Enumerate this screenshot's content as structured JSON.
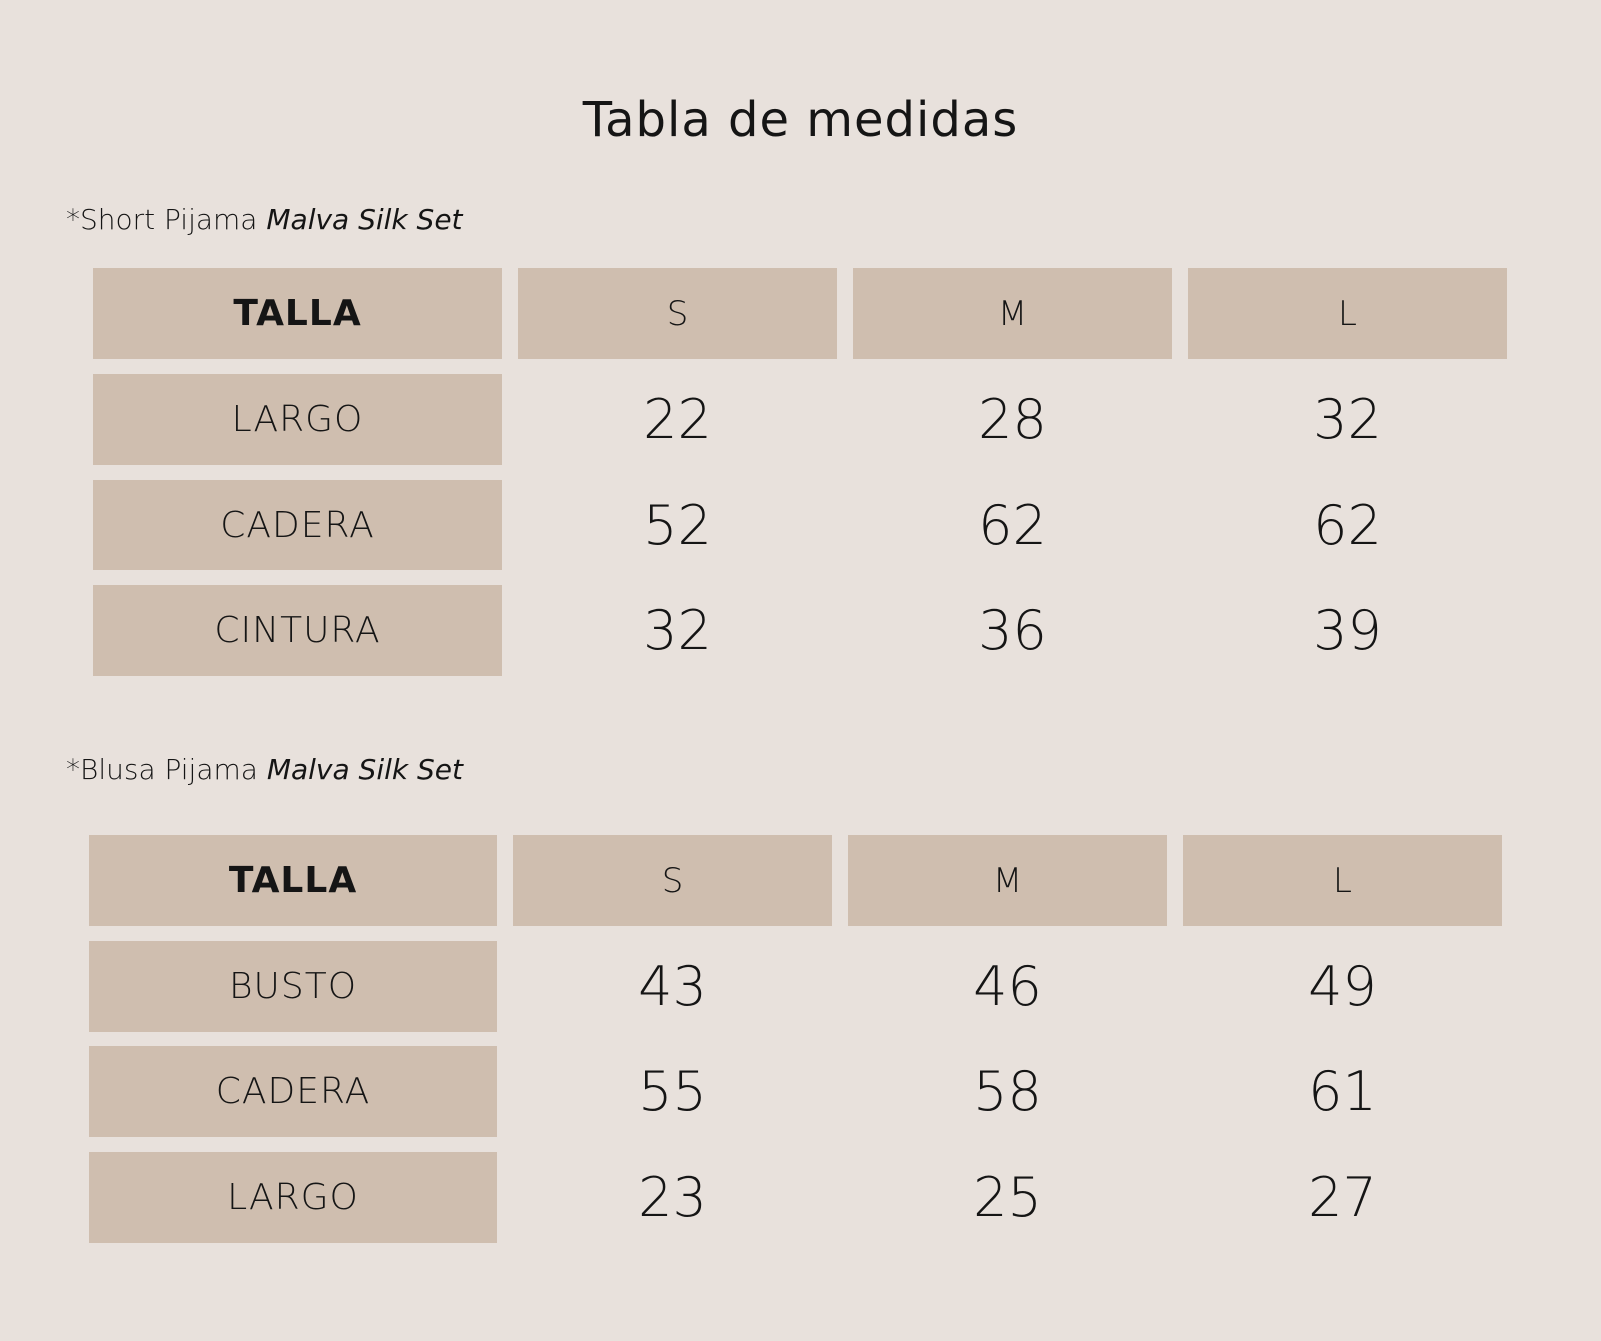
{
  "title": "Tabla de medidas",
  "colors": {
    "background": "#e8e1dc",
    "cell": "#cfbeaf",
    "text": "#151515"
  },
  "tables": [
    {
      "subtitle_prefix": "*Short Pijama ",
      "subtitle_italic": "Malva Silk Set",
      "header": [
        "TALLA",
        "S",
        "M",
        "L"
      ],
      "rows": [
        {
          "label": "LARGO",
          "values": [
            "22",
            "28",
            "32"
          ]
        },
        {
          "label": "CADERA",
          "values": [
            "52",
            "62",
            "62"
          ]
        },
        {
          "label": "CINTURA",
          "values": [
            "32",
            "36",
            "39"
          ]
        }
      ]
    },
    {
      "subtitle_prefix": "*Blusa Pijama ",
      "subtitle_italic": "Malva Silk Set",
      "header": [
        "TALLA",
        "S",
        "M",
        "L"
      ],
      "rows": [
        {
          "label": "BUSTO",
          "values": [
            "43",
            "46",
            "49"
          ]
        },
        {
          "label": "CADERA",
          "values": [
            "55",
            "58",
            "61"
          ]
        },
        {
          "label": "LARGO",
          "values": [
            "23",
            "25",
            "27"
          ]
        }
      ]
    }
  ]
}
